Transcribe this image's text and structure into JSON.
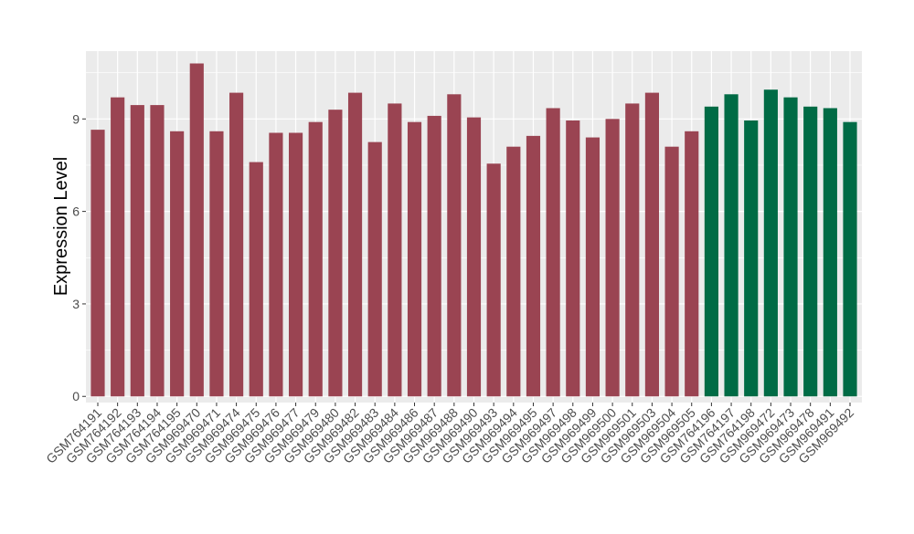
{
  "chart_data": {
    "type": "bar",
    "title": "",
    "xlabel": "",
    "ylabel": "Expression Level",
    "ylim": [
      -0.2,
      11.2
    ],
    "yticks": [
      0,
      3,
      6,
      9
    ],
    "grid": true,
    "legend": "none",
    "colors": {
      "group1": "#9a4452",
      "group2": "#006b45",
      "panel": "#ebebeb",
      "grid": "#ffffff"
    },
    "categories": [
      "GSM764191",
      "GSM764192",
      "GSM764193",
      "GSM764194",
      "GSM764195",
      "GSM969470",
      "GSM969471",
      "GSM969474",
      "GSM969475",
      "GSM969476",
      "GSM969477",
      "GSM969479",
      "GSM969480",
      "GSM969482",
      "GSM969483",
      "GSM969484",
      "GSM969486",
      "GSM969487",
      "GSM969488",
      "GSM969490",
      "GSM969493",
      "GSM969494",
      "GSM969495",
      "GSM969497",
      "GSM969498",
      "GSM969499",
      "GSM969500",
      "GSM969501",
      "GSM969503",
      "GSM969504",
      "GSM969505",
      "GSM764196",
      "GSM764197",
      "GSM764198",
      "GSM969472",
      "GSM969473",
      "GSM969478",
      "GSM969491",
      "GSM969492"
    ],
    "values": [
      8.65,
      9.7,
      9.45,
      9.45,
      8.6,
      10.8,
      8.6,
      9.85,
      7.6,
      8.55,
      8.55,
      8.9,
      9.3,
      9.85,
      8.25,
      9.5,
      8.9,
      9.1,
      9.8,
      9.05,
      7.55,
      8.1,
      8.45,
      9.35,
      8.95,
      8.4,
      9.0,
      9.5,
      9.85,
      8.1,
      8.6,
      9.4,
      9.8,
      8.95,
      9.95,
      9.7,
      9.4,
      9.35,
      8.9
    ],
    "groups": [
      1,
      1,
      1,
      1,
      1,
      1,
      1,
      1,
      1,
      1,
      1,
      1,
      1,
      1,
      1,
      1,
      1,
      1,
      1,
      1,
      1,
      1,
      1,
      1,
      1,
      1,
      1,
      1,
      1,
      1,
      1,
      2,
      2,
      2,
      2,
      2,
      2,
      2,
      2
    ]
  }
}
